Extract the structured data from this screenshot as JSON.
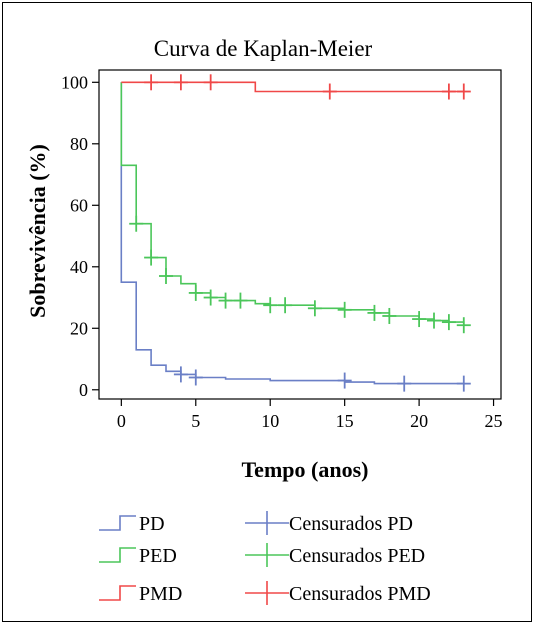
{
  "chart_data": {
    "type": "line",
    "subtype": "kaplan-meier step",
    "title": "Curva de Kaplan-Meier",
    "xlabel": "Tempo (anos)",
    "ylabel": "Sobrevivência (%)",
    "xlim": [
      -1.5,
      25.5
    ],
    "ylim": [
      -3,
      104
    ],
    "xticks": [
      0,
      5,
      10,
      15,
      20,
      25
    ],
    "yticks": [
      0,
      20,
      40,
      60,
      80,
      100
    ],
    "grid": false,
    "legend_position": "bottom",
    "series": [
      {
        "name": "PD",
        "color": "#6a7fc6",
        "steps": [
          [
            0,
            100
          ],
          [
            0,
            35
          ],
          [
            1,
            35
          ],
          [
            1,
            13
          ],
          [
            2,
            13
          ],
          [
            2,
            8
          ],
          [
            3,
            8
          ],
          [
            3,
            6
          ],
          [
            4,
            6
          ],
          [
            4,
            5
          ],
          [
            5,
            5
          ],
          [
            5,
            4
          ],
          [
            7,
            4
          ],
          [
            7,
            3.5
          ],
          [
            10,
            3.5
          ],
          [
            10,
            3
          ],
          [
            15,
            3
          ],
          [
            15,
            2.5
          ],
          [
            17,
            2.5
          ],
          [
            17,
            2
          ],
          [
            23,
            2
          ]
        ],
        "censored_label": "Censurados PD",
        "censored": [
          [
            4,
            5
          ],
          [
            5,
            4
          ],
          [
            15,
            3
          ],
          [
            19,
            2
          ],
          [
            23,
            2
          ]
        ]
      },
      {
        "name": "PED",
        "color": "#4bc65a",
        "steps": [
          [
            0,
            100
          ],
          [
            0,
            73
          ],
          [
            1,
            73
          ],
          [
            1,
            54
          ],
          [
            2,
            54
          ],
          [
            2,
            43
          ],
          [
            3,
            43
          ],
          [
            3,
            37
          ],
          [
            4,
            37
          ],
          [
            4,
            34.5
          ],
          [
            5,
            34.5
          ],
          [
            5,
            31.5
          ],
          [
            6,
            31.5
          ],
          [
            6,
            30
          ],
          [
            7,
            30
          ],
          [
            7,
            29
          ],
          [
            9,
            29
          ],
          [
            9,
            28
          ],
          [
            10,
            28
          ],
          [
            10,
            27.5
          ],
          [
            13,
            27.5
          ],
          [
            13,
            26.5
          ],
          [
            15,
            26.5
          ],
          [
            15,
            26
          ],
          [
            17,
            26
          ],
          [
            17,
            25
          ],
          [
            18,
            25
          ],
          [
            18,
            24
          ],
          [
            20,
            24
          ],
          [
            20,
            23
          ],
          [
            21,
            23
          ],
          [
            21,
            22.5
          ],
          [
            22,
            22.5
          ],
          [
            22,
            22
          ],
          [
            23,
            22
          ],
          [
            23,
            21
          ]
        ],
        "censored_label": "Censurados PED",
        "censored": [
          [
            1,
            54
          ],
          [
            2,
            43
          ],
          [
            3,
            37
          ],
          [
            5,
            31.5
          ],
          [
            6,
            30
          ],
          [
            7,
            29
          ],
          [
            8,
            29
          ],
          [
            10,
            27.5
          ],
          [
            11,
            27.5
          ],
          [
            13,
            26.5
          ],
          [
            15,
            26
          ],
          [
            17,
            25
          ],
          [
            18,
            24
          ],
          [
            20,
            23
          ],
          [
            21,
            22.5
          ],
          [
            22,
            22
          ],
          [
            23,
            21
          ]
        ]
      },
      {
        "name": "PMD",
        "color": "#f04848",
        "steps": [
          [
            0,
            100
          ],
          [
            9,
            100
          ],
          [
            9,
            97
          ],
          [
            23,
            97
          ]
        ],
        "censored_label": "Censurados PMD",
        "censored": [
          [
            2,
            100
          ],
          [
            4,
            100
          ],
          [
            6,
            100
          ],
          [
            14,
            97
          ],
          [
            22,
            97
          ],
          [
            23,
            97
          ]
        ]
      }
    ]
  }
}
